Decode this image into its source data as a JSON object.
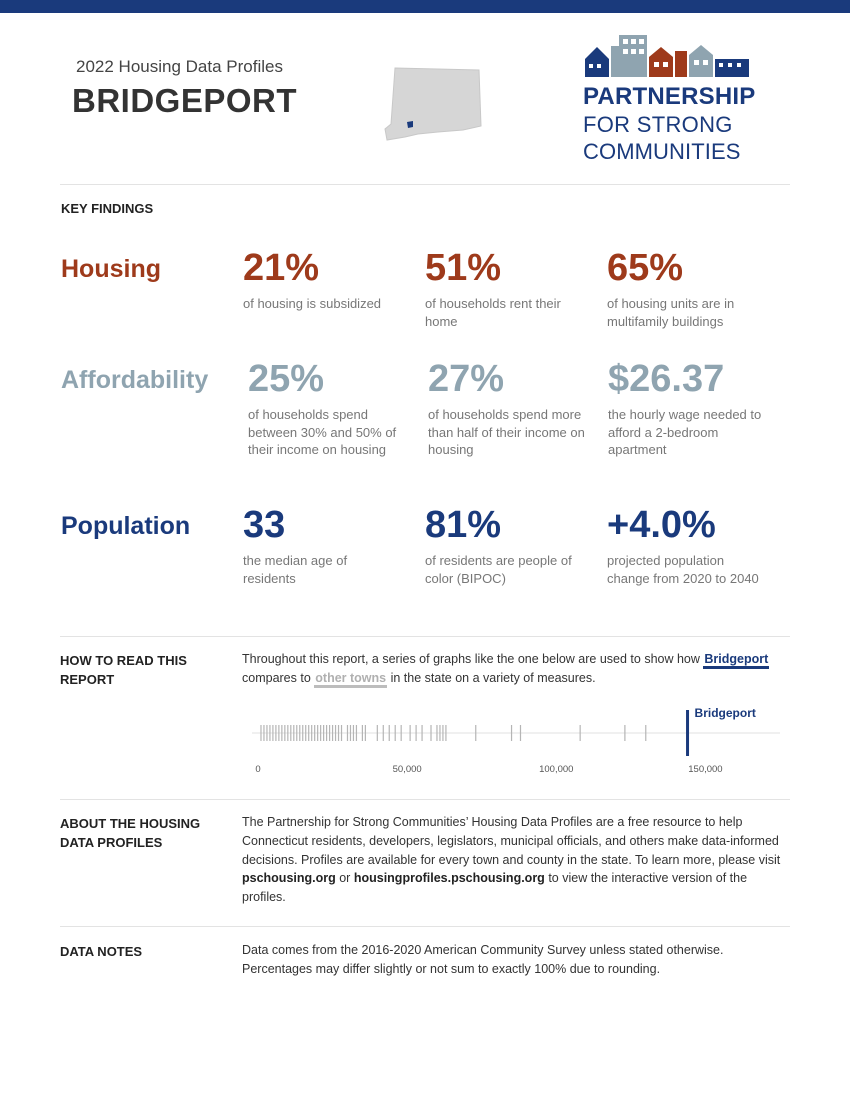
{
  "header": {
    "subtitle": "2022 Housing Data Profiles",
    "town": "BRIDGEPORT",
    "logo": {
      "line1": "PARTNERSHIP",
      "line2": "FOR STRONG",
      "line3": "COMMUNITIES"
    }
  },
  "key_findings": {
    "title": "KEY FINDINGS",
    "categories": [
      {
        "label": "Housing",
        "color": "#9e3a1b",
        "stats": [
          {
            "value": "21%",
            "desc": "of housing is subsidized"
          },
          {
            "value": "51%",
            "desc": "of households rent their home"
          },
          {
            "value": "65%",
            "desc": "of housing units are in multifamily buildings"
          }
        ]
      },
      {
        "label": "Affordability",
        "color": "#8fa4b0",
        "stats": [
          {
            "value": "25%",
            "desc": "of households spend between 30% and 50% of their income on housing"
          },
          {
            "value": "27%",
            "desc": "of households spend more than half of their income on housing"
          },
          {
            "value": "$26.37",
            "desc": "the hourly wage needed to afford a 2-bedroom apartment"
          }
        ]
      },
      {
        "label": "Population",
        "color": "#1a3a7c",
        "stats": [
          {
            "value": "33",
            "desc": "the median age of residents"
          },
          {
            "value": "81%",
            "desc": "of residents are people of color (BIPOC)"
          },
          {
            "value": "+4.0%",
            "desc": "projected population change from 2020 to 2040"
          }
        ]
      }
    ]
  },
  "how_to_read": {
    "title": "HOW TO READ THIS REPORT",
    "text_before": "Throughout this report, a series of graphs like the one below are used to show how",
    "highlight_town": "Bridgeport",
    "text_middle": "compares to",
    "highlight_other": "other towns",
    "text_after": "in the state on a variety of measures."
  },
  "chart_data": {
    "type": "strip",
    "highlight_label": "Bridgeport",
    "highlight_value": 144000,
    "other_values": [
      1000,
      2000,
      3000,
      4000,
      5000,
      6000,
      7000,
      8000,
      9000,
      10000,
      11000,
      12000,
      13000,
      14000,
      15000,
      16000,
      17000,
      18000,
      19000,
      20000,
      21000,
      22000,
      23000,
      24000,
      25000,
      26000,
      27000,
      28000,
      30000,
      31000,
      32000,
      33000,
      35000,
      36000,
      40000,
      42000,
      44000,
      46000,
      48000,
      51000,
      53000,
      55000,
      58000,
      60000,
      61000,
      62000,
      63000,
      73000,
      85000,
      88000,
      108000,
      123000,
      130000
    ],
    "xlim": [
      0,
      175000
    ],
    "xticks": [
      {
        "value": 0,
        "label": "0"
      },
      {
        "value": 50000,
        "label": "50,000"
      },
      {
        "value": 100000,
        "label": "100,000"
      },
      {
        "value": 150000,
        "label": "150,000"
      }
    ]
  },
  "about": {
    "title": "ABOUT THE HOUSING DATA PROFILES",
    "text1": "The Partnership for Strong Communities’ Housing Data Profiles are a free resource to help Connecticut residents, developers, legislators, municipal officials, and others make data-informed decisions. Profiles are available for every town and county in the state. To learn more, please visit",
    "link1": "pschousing.org",
    "text2": "or",
    "link2": "housingprofiles.pschousing.org",
    "text3": "to view the interactive version of the profiles."
  },
  "data_notes": {
    "title": "DATA NOTES",
    "text": "Data comes from the 2016-2020 American Community Survey unless stated otherwise. Percentages may differ slightly or not sum to exactly 100% due to rounding."
  }
}
